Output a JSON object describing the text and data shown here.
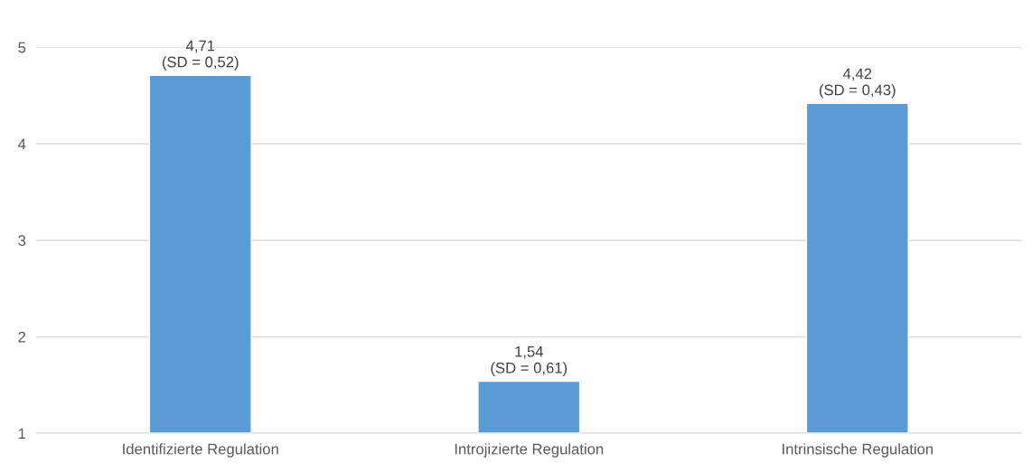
{
  "chart_data": {
    "type": "bar",
    "categories": [
      "Identifizierte Regulation",
      "Introjizierte Regulation",
      "Intrinsische Regulation"
    ],
    "values": [
      4.71,
      1.54,
      4.42
    ],
    "value_labels": [
      "4,71\n(SD = 0,52)",
      "1,54\n(SD = 0,61)",
      "4,42\n(SD = 0,43)"
    ],
    "color": "#5b9bd5",
    "ylim": [
      1,
      5
    ],
    "yticks": [
      1,
      2,
      3,
      4,
      5
    ],
    "grid": "y",
    "legend": false
  }
}
